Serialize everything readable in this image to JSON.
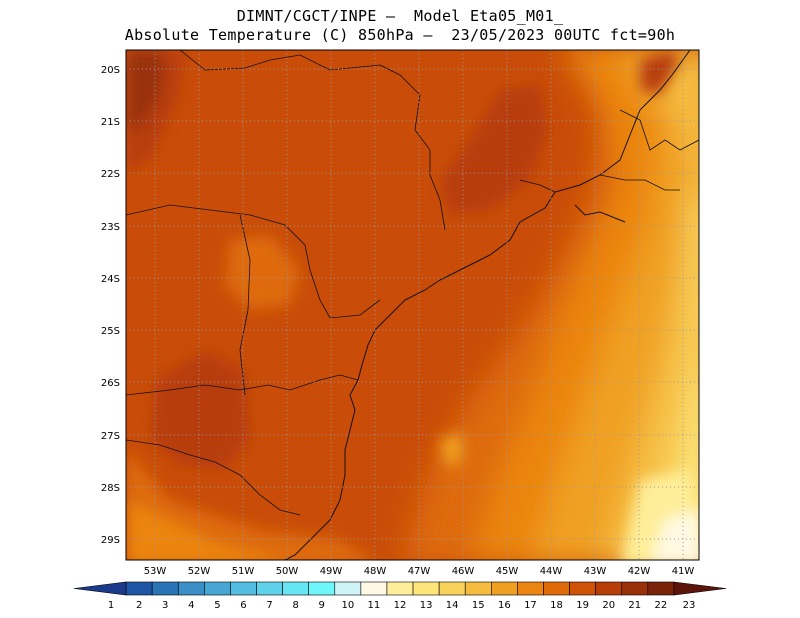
{
  "header": {
    "line1": "DIMNT/CGCT/INPE –  Model Eta05_M01_",
    "line2": "Absolute Temperature (C) 850hPa –  23/05/2023 00UTC fct=90h"
  },
  "map": {
    "lat_labels": [
      "20S",
      "21S",
      "22S",
      "23S",
      "24S",
      "25S",
      "26S",
      "27S",
      "28S",
      "29S"
    ],
    "lon_labels": [
      "53W",
      "52W",
      "51W",
      "50W",
      "49W",
      "48W",
      "47W",
      "46W",
      "45W",
      "44W",
      "43W",
      "42W",
      "41W"
    ]
  },
  "colorbar": {
    "labels": [
      "1",
      "2",
      "3",
      "4",
      "5",
      "6",
      "7",
      "8",
      "9",
      "10",
      "11",
      "12",
      "13",
      "14",
      "15",
      "16",
      "17",
      "18",
      "19",
      "20",
      "21",
      "22",
      "23"
    ],
    "colors": [
      "#1b3a8c",
      "#1f56a3",
      "#2a74b5",
      "#3a8fc6",
      "#46a7d4",
      "#52bde0",
      "#5ed2ea",
      "#65e6f2",
      "#6ff6fb",
      "#cff4f8",
      "#fff9e3",
      "#ffee99",
      "#fde57a",
      "#f9d25c",
      "#f5bc3f",
      "#f0a020",
      "#eb8510",
      "#de6a08",
      "#cf5207",
      "#b83e08",
      "#993008",
      "#7a220a",
      "#5c140a"
    ]
  }
}
